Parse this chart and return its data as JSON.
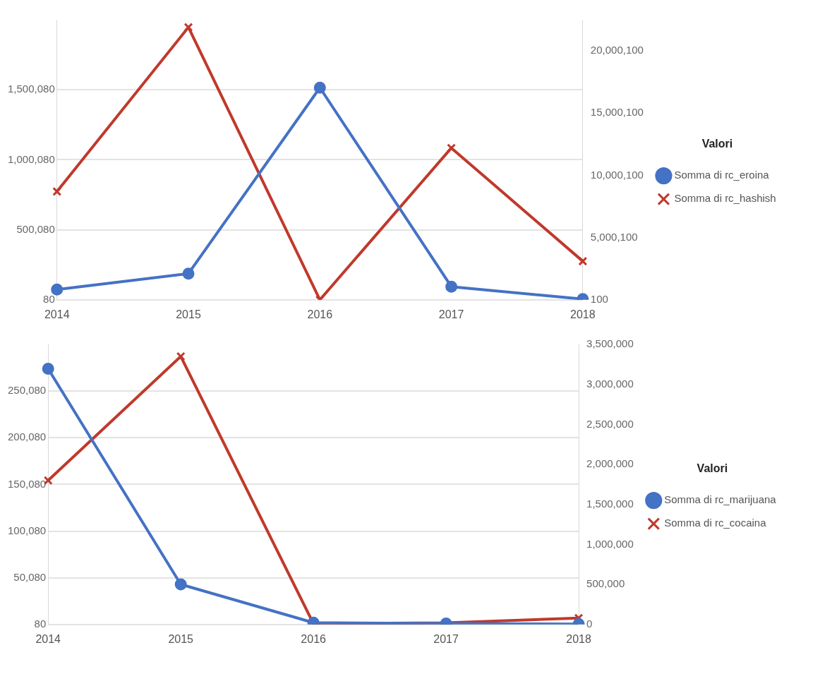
{
  "chart_data": [
    {
      "type": "line",
      "legend_title": "Valori",
      "legend": "right",
      "grid": "y",
      "categories": [
        "2014",
        "2015",
        "2016",
        "2017",
        "2018"
      ],
      "ylim": [
        80,
        2000080
      ],
      "yticks": [
        {
          "value": 80,
          "label": "80"
        },
        {
          "value": 500080,
          "label": "500,080"
        },
        {
          "value": 1000080,
          "label": "1,000,080"
        },
        {
          "value": 1500080,
          "label": "1,500,080"
        }
      ],
      "y2lim": [
        100,
        22500100
      ],
      "y2ticks": [
        {
          "value": 100,
          "label": "100"
        },
        {
          "value": 5000100,
          "label": "5,000,100"
        },
        {
          "value": 10000100,
          "label": "10,000,100"
        },
        {
          "value": 15000100,
          "label": "15,000,100"
        },
        {
          "value": 20000100,
          "label": "20,000,100"
        }
      ],
      "series": [
        {
          "name": "Somma di rc_eroina",
          "color": "#4472c4",
          "marker": "circle",
          "values": [
            73000,
            187000,
            1515000,
            94000,
            5000
          ]
        },
        {
          "name": "Somma di rc_hashish",
          "color": "#c0392b",
          "marker": "cross",
          "axis": "y2",
          "values": [
            8700000,
            21900000,
            100,
            12200000,
            3100000
          ]
        }
      ]
    },
    {
      "type": "line",
      "legend_title": "Valori",
      "legend": "right",
      "grid": "y",
      "categories": [
        "2014",
        "2015",
        "2016",
        "2017",
        "2018"
      ],
      "ylim": [
        80,
        300080
      ],
      "yticks": [
        {
          "value": 80,
          "label": "80"
        },
        {
          "value": 50080,
          "label": "50,080"
        },
        {
          "value": 100080,
          "label": "100,080"
        },
        {
          "value": 150080,
          "label": "150,080"
        },
        {
          "value": 200080,
          "label": "200,080"
        },
        {
          "value": 250080,
          "label": "250,080"
        }
      ],
      "y2lim": [
        0,
        3500000
      ],
      "y2ticks": [
        {
          "value": 0,
          "label": "0"
        },
        {
          "value": 500000,
          "label": "500,000"
        },
        {
          "value": 1000000,
          "label": "1,000,000"
        },
        {
          "value": 1500000,
          "label": "1,500,000"
        },
        {
          "value": 2000000,
          "label": "2,000,000"
        },
        {
          "value": 2500000,
          "label": "2,500,000"
        },
        {
          "value": 3000000,
          "label": "3,000,000"
        },
        {
          "value": 3500000,
          "label": "3,500,000"
        }
      ],
      "series": [
        {
          "name": "Somma di rc_marijuana",
          "color": "#4472c4",
          "marker": "circle",
          "values": [
            274000,
            43000,
            2000,
            1000,
            500
          ]
        },
        {
          "name": "Somma di rc_cocaina",
          "color": "#c0392b",
          "marker": "cross",
          "axis": "y2",
          "values": [
            1800000,
            3350000,
            10000,
            20000,
            80000
          ]
        }
      ]
    }
  ]
}
